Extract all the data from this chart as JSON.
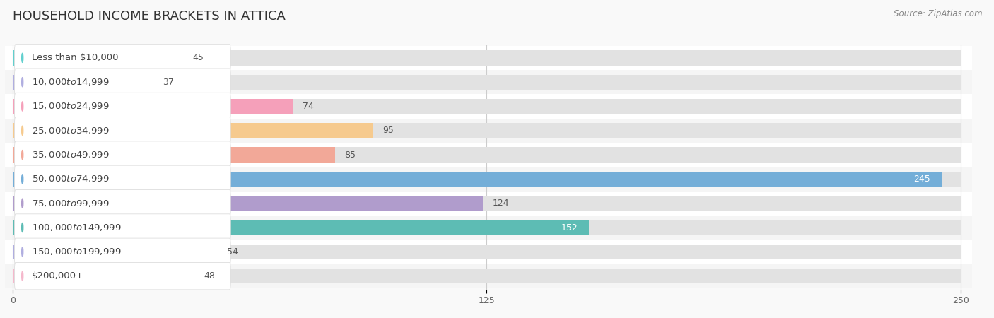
{
  "title": "HOUSEHOLD INCOME BRACKETS IN ATTICA",
  "source": "Source: ZipAtlas.com",
  "categories": [
    "Less than $10,000",
    "$10,000 to $14,999",
    "$15,000 to $24,999",
    "$25,000 to $34,999",
    "$35,000 to $49,999",
    "$50,000 to $74,999",
    "$75,000 to $99,999",
    "$100,000 to $149,999",
    "$150,000 to $199,999",
    "$200,000+"
  ],
  "values": [
    45,
    37,
    74,
    95,
    85,
    245,
    124,
    152,
    54,
    48
  ],
  "bar_colors": [
    "#62d0ce",
    "#b0aee0",
    "#f5a0ba",
    "#f6ca8e",
    "#f2a898",
    "#74aed8",
    "#b09ccc",
    "#5dbcb4",
    "#b0aee0",
    "#f5b8cc"
  ],
  "row_colors": [
    "#ffffff",
    "#f5f5f5",
    "#ffffff",
    "#f5f5f5",
    "#ffffff",
    "#f5f5f5",
    "#ffffff",
    "#f5f5f5",
    "#ffffff",
    "#f5f5f5"
  ],
  "xlim_max": 250,
  "xticks": [
    0,
    125,
    250
  ],
  "background_color": "#f9f9f9",
  "title_color": "#333333",
  "title_fontsize": 13,
  "label_fontsize": 9.5,
  "value_fontsize": 9,
  "value_inside_color": "#ffffff",
  "value_outside_color": "#555555",
  "inside_value_indices": [
    5,
    7
  ],
  "source_text": "Source: ZipAtlas.com"
}
